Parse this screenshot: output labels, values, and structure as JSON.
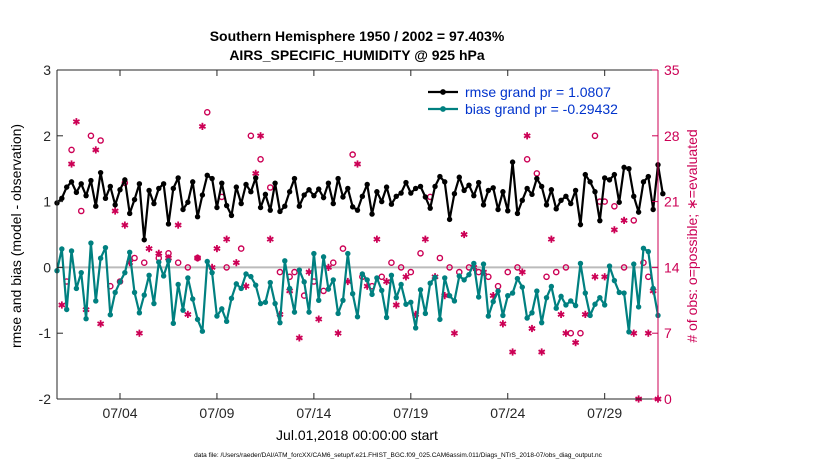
{
  "chart_data": {
    "type": "line",
    "title": "Southern Hemisphere 1950 / 2002 = 97.403%",
    "subtitle": "AIRS_SPECIFIC_HUMIDITY @ 925 hPa",
    "xlabel": "Jul.01,2018 00:00:00 start",
    "ylabel": "rmse and bias (model - observation)",
    "y2label": "# of obs: o=possible; ∗=evaluated",
    "footer": "data file: /Users/raeder/DAI/ATM_forcXX/CAM6_setup/f.e21.FHIST_BGC.f09_025.CAM6assim.011/Diags_NTrS_2018-07/obs_diag_output.nc",
    "xlim": [
      0,
      124
    ],
    "ylim": [
      -2,
      3
    ],
    "y2lim": [
      0,
      35
    ],
    "x_ticks": [
      {
        "x": 13,
        "label": "07/04"
      },
      {
        "x": 33,
        "label": "07/09"
      },
      {
        "x": 53,
        "label": "07/14"
      },
      {
        "x": 73,
        "label": "07/19"
      },
      {
        "x": 93,
        "label": "07/24"
      },
      {
        "x": 113,
        "label": "07/29"
      }
    ],
    "y_ticks": [
      -2,
      -1,
      0,
      1,
      2,
      3
    ],
    "y2_ticks": [
      0,
      7,
      14,
      21,
      28,
      35
    ],
    "colors": {
      "rmse": "#000000",
      "bias": "#008080",
      "obs": "#cc0055",
      "zero_line": "#bbbbbb",
      "legend_text": "#0033cc"
    },
    "series": [
      {
        "name": "rmse grand pr = 1.0807",
        "axis": "left",
        "color": "#000000",
        "values": [
          0.98,
          1.05,
          1.22,
          1.3,
          1.14,
          1.27,
          1.09,
          1.32,
          0.93,
          1.44,
          1.05,
          1.23,
          0.95,
          1.18,
          1.33,
          0.82,
          1.03,
          1.27,
          0.42,
          1.17,
          0.97,
          1.2,
          1.27,
          0.66,
          1.2,
          1.36,
          0.88,
          0.99,
          1.3,
          0.77,
          1.1,
          1.4,
          1.35,
          0.91,
          1.28,
          0.94,
          0.79,
          1.22,
          0.97,
          1.26,
          1.15,
          1.36,
          0.91,
          1.11,
          0.87,
          1.28,
          0.85,
          0.93,
          1.15,
          1.35,
          0.93,
          1.1,
          1.18,
          1.09,
          1.19,
          1.06,
          1.28,
          0.97,
          1.35,
          1.07,
          1.2,
          0.92,
          0.87,
          1.08,
          1.26,
          0.81,
          1.15,
          1.0,
          1.22,
          0.96,
          1.08,
          1.13,
          1.29,
          1.13,
          1.2,
          1.23,
          1.07,
          0.9,
          1.23,
          1.38,
          1.3,
          0.73,
          1.12,
          1.37,
          1.17,
          1.25,
          1.09,
          1.29,
          0.95,
          1.17,
          1.21,
          0.88,
          1.15,
          0.86,
          1.6,
          0.82,
          1.02,
          1.2,
          1.11,
          1.35,
          1.23,
          0.95,
          1.18,
          0.89,
          1.02,
          1.08,
          0.97,
          1.17,
          0.65,
          1.41,
          1.3,
          1.15,
          0.71,
          1.36,
          1.33,
          1.41,
          0.99,
          1.52,
          1.5,
          1.08,
          0.84,
          1.3,
          1.38,
          0.88,
          1.56,
          1.12
        ],
        "x_start": 0
      },
      {
        "name": "bias grand pr = -0.29432",
        "axis": "left",
        "color": "#008080",
        "values": [
          -0.05,
          0.28,
          -0.64,
          0.25,
          -0.32,
          -0.08,
          -0.78,
          0.37,
          -0.51,
          0.14,
          0.3,
          -0.72,
          -0.38,
          -0.22,
          -0.08,
          0.23,
          -0.38,
          -0.69,
          -0.42,
          -0.12,
          -0.55,
          0.08,
          -0.13,
          0.1,
          -0.85,
          -0.26,
          -0.65,
          -0.16,
          -0.48,
          -0.79,
          -0.97,
          0.09,
          -0.08,
          -0.74,
          -0.63,
          -0.82,
          -0.47,
          -0.25,
          -0.32,
          -0.1,
          -0.14,
          -0.27,
          -0.55,
          -0.53,
          -0.23,
          -0.55,
          -0.84,
          0.1,
          -0.32,
          -0.68,
          -0.04,
          -0.22,
          -0.68,
          0.21,
          -0.5,
          0.16,
          -0.33,
          -0.19,
          -0.7,
          -0.5,
          0.21,
          -0.4,
          -0.75,
          -0.1,
          -0.19,
          -0.41,
          -0.16,
          -0.35,
          -0.76,
          -0.12,
          -0.46,
          -0.26,
          -0.56,
          -0.53,
          -0.92,
          -0.34,
          -0.7,
          -0.24,
          -0.15,
          -0.79,
          -0.16,
          -0.43,
          -0.51,
          -0.13,
          -0.19,
          -0.11,
          0.06,
          -0.45,
          0.05,
          -0.74,
          -0.52,
          -0.36,
          -0.73,
          -0.43,
          -0.39,
          -0.17,
          -0.3,
          -0.77,
          -0.69,
          -0.36,
          -0.84,
          -0.46,
          -0.29,
          -0.62,
          -0.44,
          -0.57,
          -0.51,
          -0.58,
          0.06,
          -0.39,
          -0.73,
          -0.56,
          -0.46,
          -0.57,
          0.02,
          -0.2,
          -0.38,
          -0.39,
          -0.98,
          0.05,
          -0.6,
          0.29,
          0.24,
          -0.32,
          -0.73
        ],
        "x_start": 0
      },
      {
        "name": "obs possible (o)",
        "axis": "right",
        "color": "#cc0055",
        "marker": "o",
        "points": [
          [
            2,
            12.5
          ],
          [
            3,
            26.5
          ],
          [
            5,
            20.0
          ],
          [
            7,
            28.0
          ],
          [
            9,
            27.5
          ],
          [
            11,
            12.0
          ],
          [
            13,
            12.5
          ],
          [
            14,
            23.0
          ],
          [
            16,
            15.0
          ],
          [
            18,
            14.5
          ],
          [
            21,
            15.0
          ],
          [
            23,
            15.5
          ],
          [
            25,
            14.5
          ],
          [
            27,
            14.0
          ],
          [
            29,
            15.0
          ],
          [
            31,
            30.5
          ],
          [
            34,
            21.5
          ],
          [
            35,
            14.0
          ],
          [
            38,
            16.0
          ],
          [
            40,
            28.0
          ],
          [
            42,
            25.5
          ],
          [
            44,
            22.5
          ],
          [
            46,
            13.5
          ],
          [
            48,
            13.0
          ],
          [
            49,
            13.5
          ],
          [
            51,
            11.0
          ],
          [
            53,
            12.5
          ],
          [
            55,
            11.5
          ],
          [
            57,
            14.5
          ],
          [
            59,
            16.0
          ],
          [
            61,
            26.0
          ],
          [
            63,
            13.0
          ],
          [
            65,
            12.0
          ],
          [
            67,
            13.0
          ],
          [
            69,
            14.5
          ],
          [
            71,
            14.0
          ],
          [
            73,
            13.5
          ],
          [
            75,
            15.5
          ],
          [
            77,
            21.5
          ],
          [
            79,
            15.0
          ],
          [
            81,
            14.0
          ],
          [
            83,
            13.5
          ],
          [
            85,
            14.0
          ],
          [
            87,
            13.5
          ],
          [
            89,
            13.0
          ],
          [
            91,
            12.0
          ],
          [
            93,
            13.5
          ],
          [
            95,
            14.0
          ],
          [
            97,
            25.5
          ],
          [
            99,
            24.0
          ],
          [
            101,
            13.0
          ],
          [
            103,
            13.5
          ],
          [
            105,
            14.0
          ],
          [
            106,
            7.0
          ],
          [
            108,
            7.0
          ],
          [
            111,
            28.0
          ],
          [
            112,
            21.0
          ],
          [
            113,
            21.0
          ],
          [
            115,
            20.5
          ],
          [
            117,
            14.0
          ],
          [
            119,
            19.0
          ],
          [
            121,
            14.5
          ],
          [
            122,
            13.0
          ]
        ]
      },
      {
        "name": "obs evaluated (∗)",
        "axis": "right",
        "color": "#cc0055",
        "marker": "*",
        "points": [
          [
            1,
            10.0
          ],
          [
            3,
            25.0
          ],
          [
            4,
            29.5
          ],
          [
            6,
            9.5
          ],
          [
            8,
            26.5
          ],
          [
            9,
            8.0
          ],
          [
            12,
            20.0
          ],
          [
            14,
            18.5
          ],
          [
            15,
            14.5
          ],
          [
            17,
            7.0
          ],
          [
            19,
            16.0
          ],
          [
            21,
            15.5
          ],
          [
            23,
            15.0
          ],
          [
            25,
            18.5
          ],
          [
            27,
            9.0
          ],
          [
            29,
            15.0
          ],
          [
            30,
            29.0
          ],
          [
            32,
            14.0
          ],
          [
            33,
            16.0
          ],
          [
            35,
            17.0
          ],
          [
            37,
            14.5
          ],
          [
            39,
            12.0
          ],
          [
            41,
            24.0
          ],
          [
            42,
            28.0
          ],
          [
            44,
            17.0
          ],
          [
            46,
            9.0
          ],
          [
            48,
            11.5
          ],
          [
            50,
            6.5
          ],
          [
            52,
            13.5
          ],
          [
            54,
            8.5
          ],
          [
            56,
            14.0
          ],
          [
            58,
            7.0
          ],
          [
            60,
            12.5
          ],
          [
            62,
            25.0
          ],
          [
            64,
            12.0
          ],
          [
            66,
            17.0
          ],
          [
            68,
            12.5
          ],
          [
            70,
            10.0
          ],
          [
            72,
            13.0
          ],
          [
            74,
            9.0
          ],
          [
            76,
            17.0
          ],
          [
            78,
            13.0
          ],
          [
            80,
            11.0
          ],
          [
            82,
            7.0
          ],
          [
            84,
            17.5
          ],
          [
            86,
            14.0
          ],
          [
            88,
            13.5
          ],
          [
            90,
            11.0
          ],
          [
            92,
            8.0
          ],
          [
            94,
            5.0
          ],
          [
            96,
            13.5
          ],
          [
            97,
            28.0
          ],
          [
            98,
            7.5
          ],
          [
            100,
            5.0
          ],
          [
            102,
            17.0
          ],
          [
            104,
            9.0
          ],
          [
            105,
            7.0
          ],
          [
            107,
            6.0
          ],
          [
            109,
            9.0
          ],
          [
            111,
            13.0
          ],
          [
            113,
            13.0
          ],
          [
            115,
            18.0
          ],
          [
            117,
            19.0
          ],
          [
            119,
            7.0
          ],
          [
            120,
            0.0
          ],
          [
            122,
            7.0
          ],
          [
            123,
            11.5
          ],
          [
            124,
            0.0
          ]
        ]
      }
    ]
  }
}
